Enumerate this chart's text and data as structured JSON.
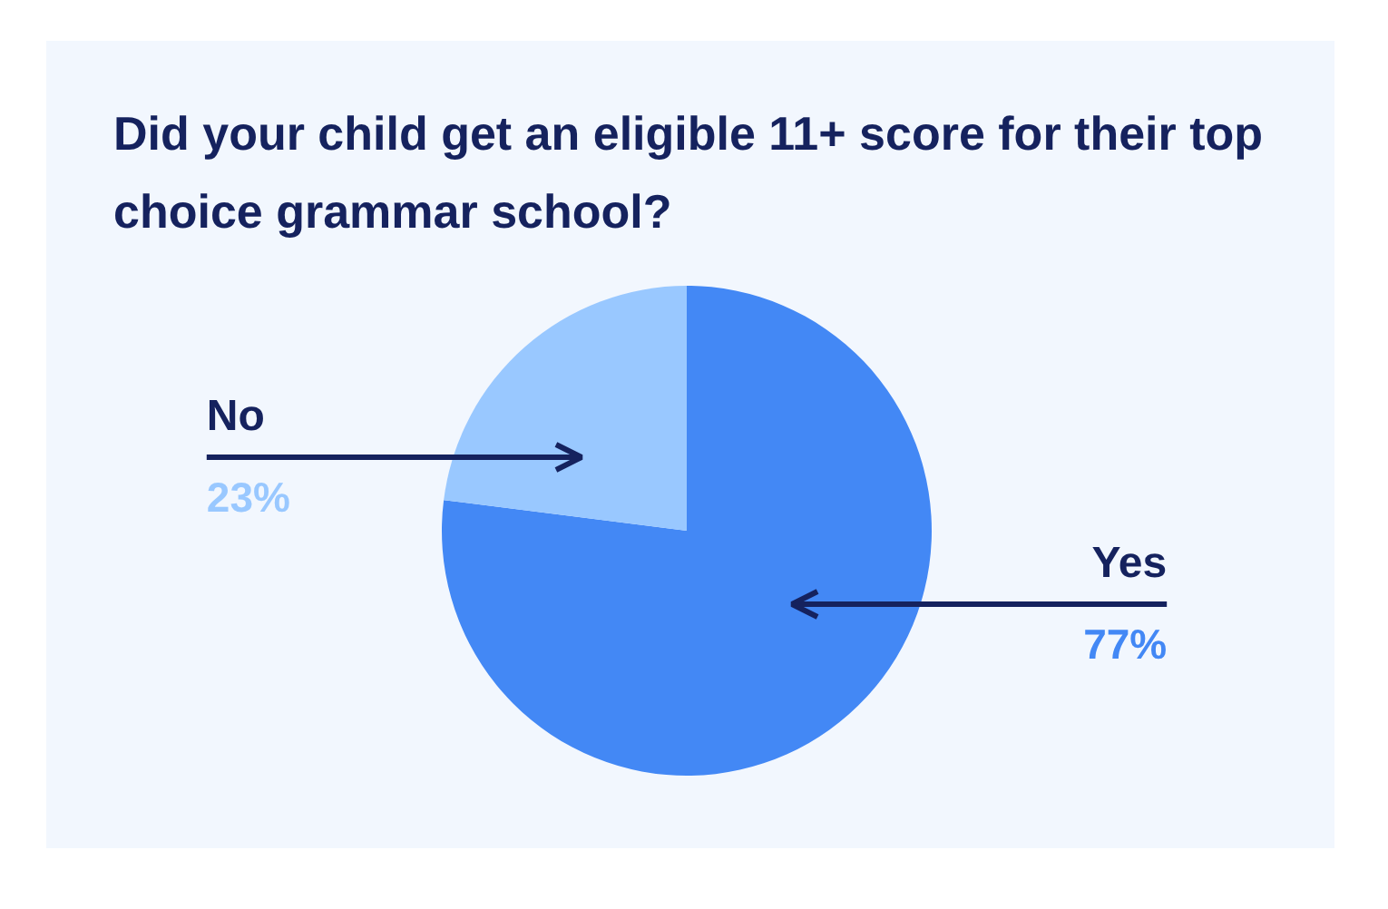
{
  "chart_data": {
    "type": "pie",
    "title": "Did your child get an eligible 11+ score for their top choice grammar school?",
    "categories": [
      "Yes",
      "No"
    ],
    "values": [
      77,
      23
    ],
    "colors": [
      "#4388f5",
      "#99c8ff"
    ],
    "value_labels": [
      "77%",
      "23%"
    ]
  }
}
